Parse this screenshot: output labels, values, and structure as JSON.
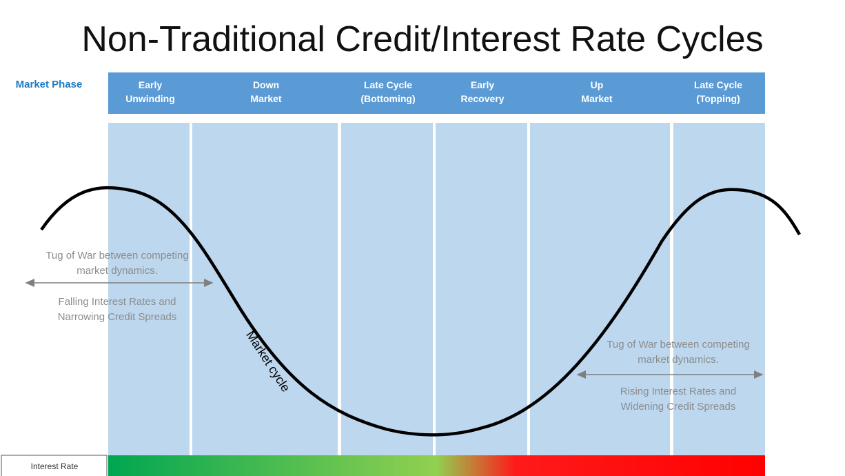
{
  "title": "Non-Traditional Credit/Interest Rate Cycles",
  "row_label": "Market Phase",
  "phases": [
    [
      "Early",
      "Unwinding"
    ],
    [
      "Down",
      "Market"
    ],
    [
      "Late Cycle",
      "(Bottoming)"
    ],
    [
      "Early",
      "Recovery"
    ],
    [
      "Up",
      "Market"
    ],
    [
      "Late Cycle",
      "(Topping)"
    ]
  ],
  "curve_label": "Market cycle",
  "left_note": {
    "top": [
      "Tug of War between competing",
      "market dynamics."
    ],
    "bottom": [
      "Falling Interest Rates and",
      "Narrowing Credit Spreads"
    ]
  },
  "right_note": {
    "top": [
      "Tug of War between competing",
      "market dynamics."
    ],
    "bottom": [
      "Rising Interest Rates and",
      "Widening Credit Spreads"
    ]
  },
  "bottom_label": "Interest Rate"
}
